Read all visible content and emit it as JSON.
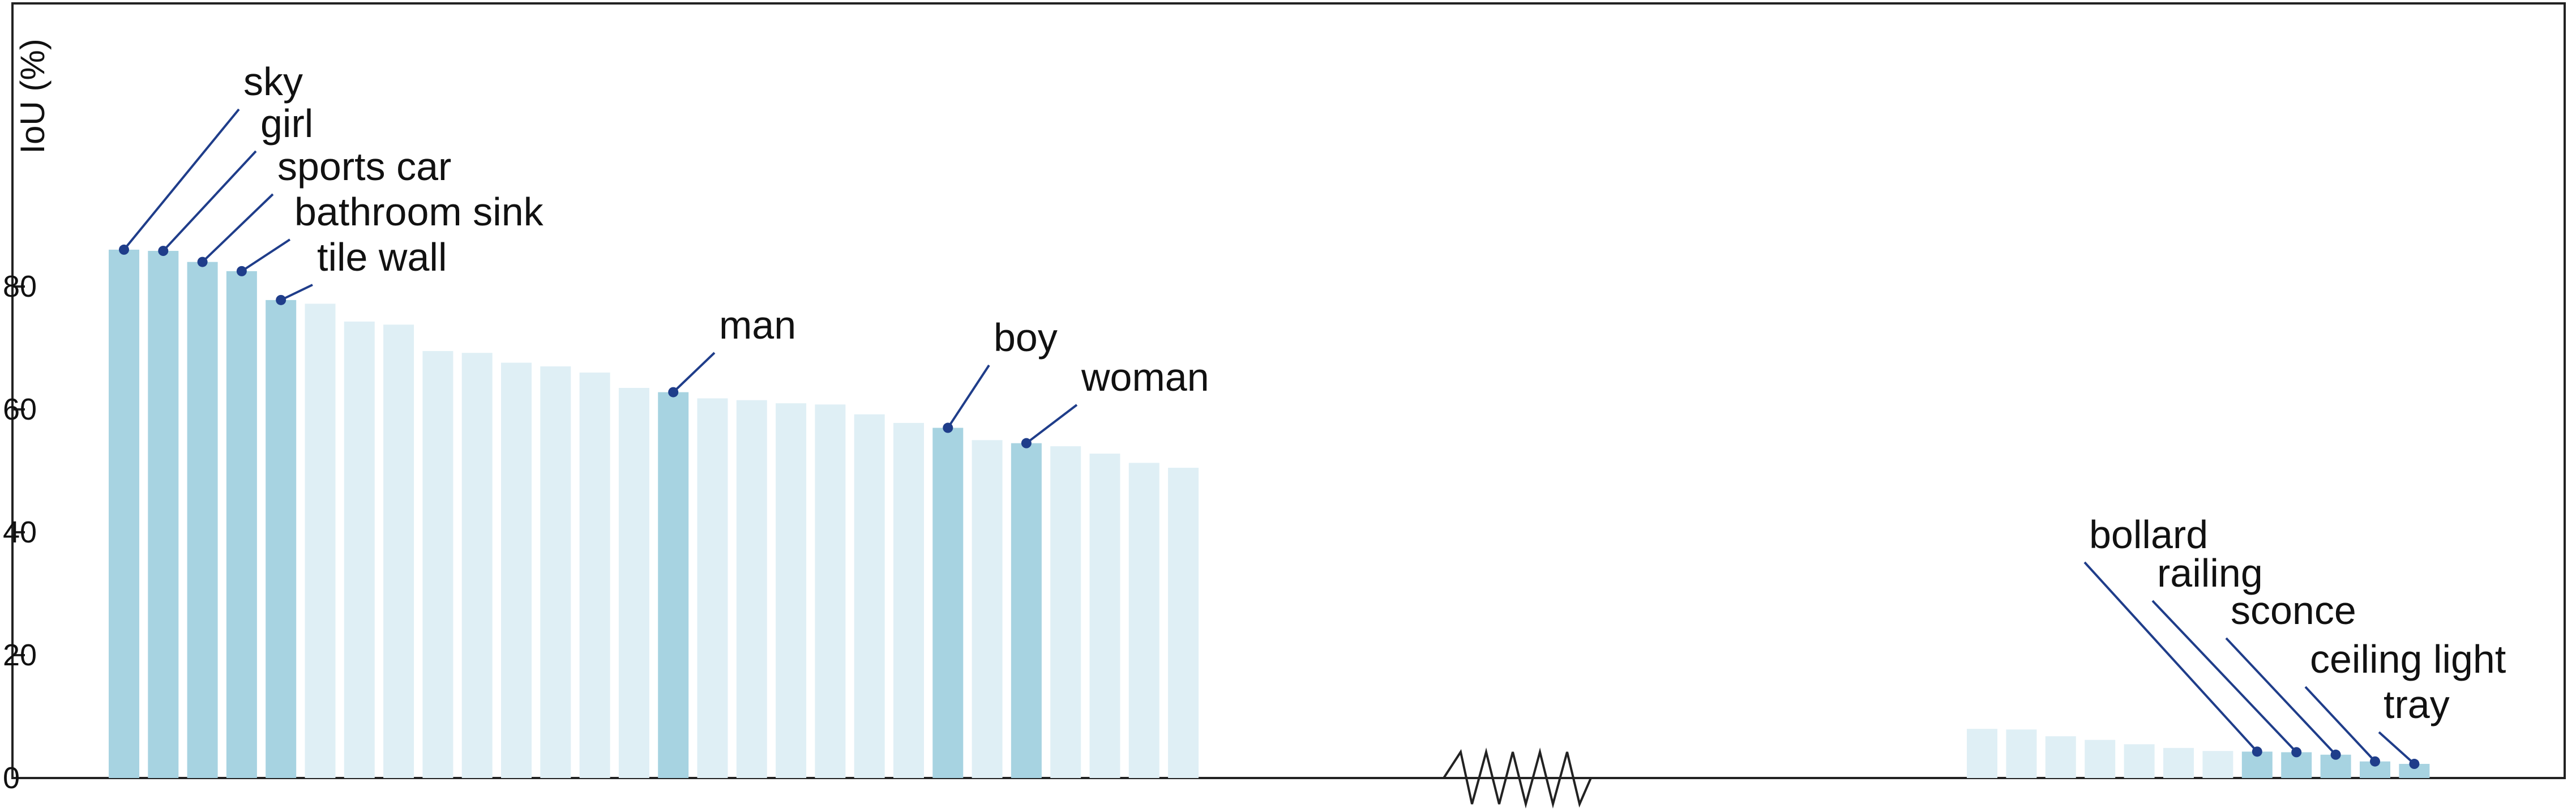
{
  "chart_data": {
    "type": "bar",
    "ylabel": "IoU (%)",
    "xlabel": "",
    "title": "",
    "ylim": [
      0,
      126
    ],
    "yticks": [
      0,
      20,
      40,
      60,
      80
    ],
    "axis_break": true,
    "colors": {
      "highlight": "#a7d3e1",
      "normal": "#dfeff5",
      "marker": "#1f3d8a",
      "axis": "#222222"
    },
    "groups": [
      {
        "values": [
          86.0,
          85.8,
          84.0,
          82.5,
          77.8,
          77.2,
          74.3,
          73.8,
          69.5,
          69.2,
          67.6,
          67.0,
          66.0,
          63.5,
          62.8,
          61.8,
          61.5,
          61.0,
          60.8,
          59.2,
          57.8,
          57.0,
          55.0,
          54.5,
          54.0,
          52.8,
          51.3,
          50.5
        ],
        "highlight": [
          0,
          1,
          2,
          3,
          4,
          14,
          21,
          23
        ],
        "labels": [
          {
            "index": 0,
            "text": "sky"
          },
          {
            "index": 1,
            "text": "girl"
          },
          {
            "index": 2,
            "text": "sports car"
          },
          {
            "index": 3,
            "text": "bathroom sink"
          },
          {
            "index": 4,
            "text": "tile wall"
          },
          {
            "index": 14,
            "text": "man"
          },
          {
            "index": 21,
            "text": "boy"
          },
          {
            "index": 23,
            "text": "woman"
          }
        ]
      },
      {
        "values": [
          8.0,
          7.9,
          6.8,
          6.2,
          5.5,
          4.9,
          4.4,
          4.3,
          4.2,
          3.8,
          2.7,
          2.3
        ],
        "highlight": [
          7,
          8,
          9,
          10,
          11
        ],
        "labels": [
          {
            "index": 7,
            "text": "bollard"
          },
          {
            "index": 8,
            "text": "railing"
          },
          {
            "index": 9,
            "text": "sconce"
          },
          {
            "index": 10,
            "text": "ceiling light"
          },
          {
            "index": 11,
            "text": "tray"
          }
        ]
      }
    ]
  }
}
